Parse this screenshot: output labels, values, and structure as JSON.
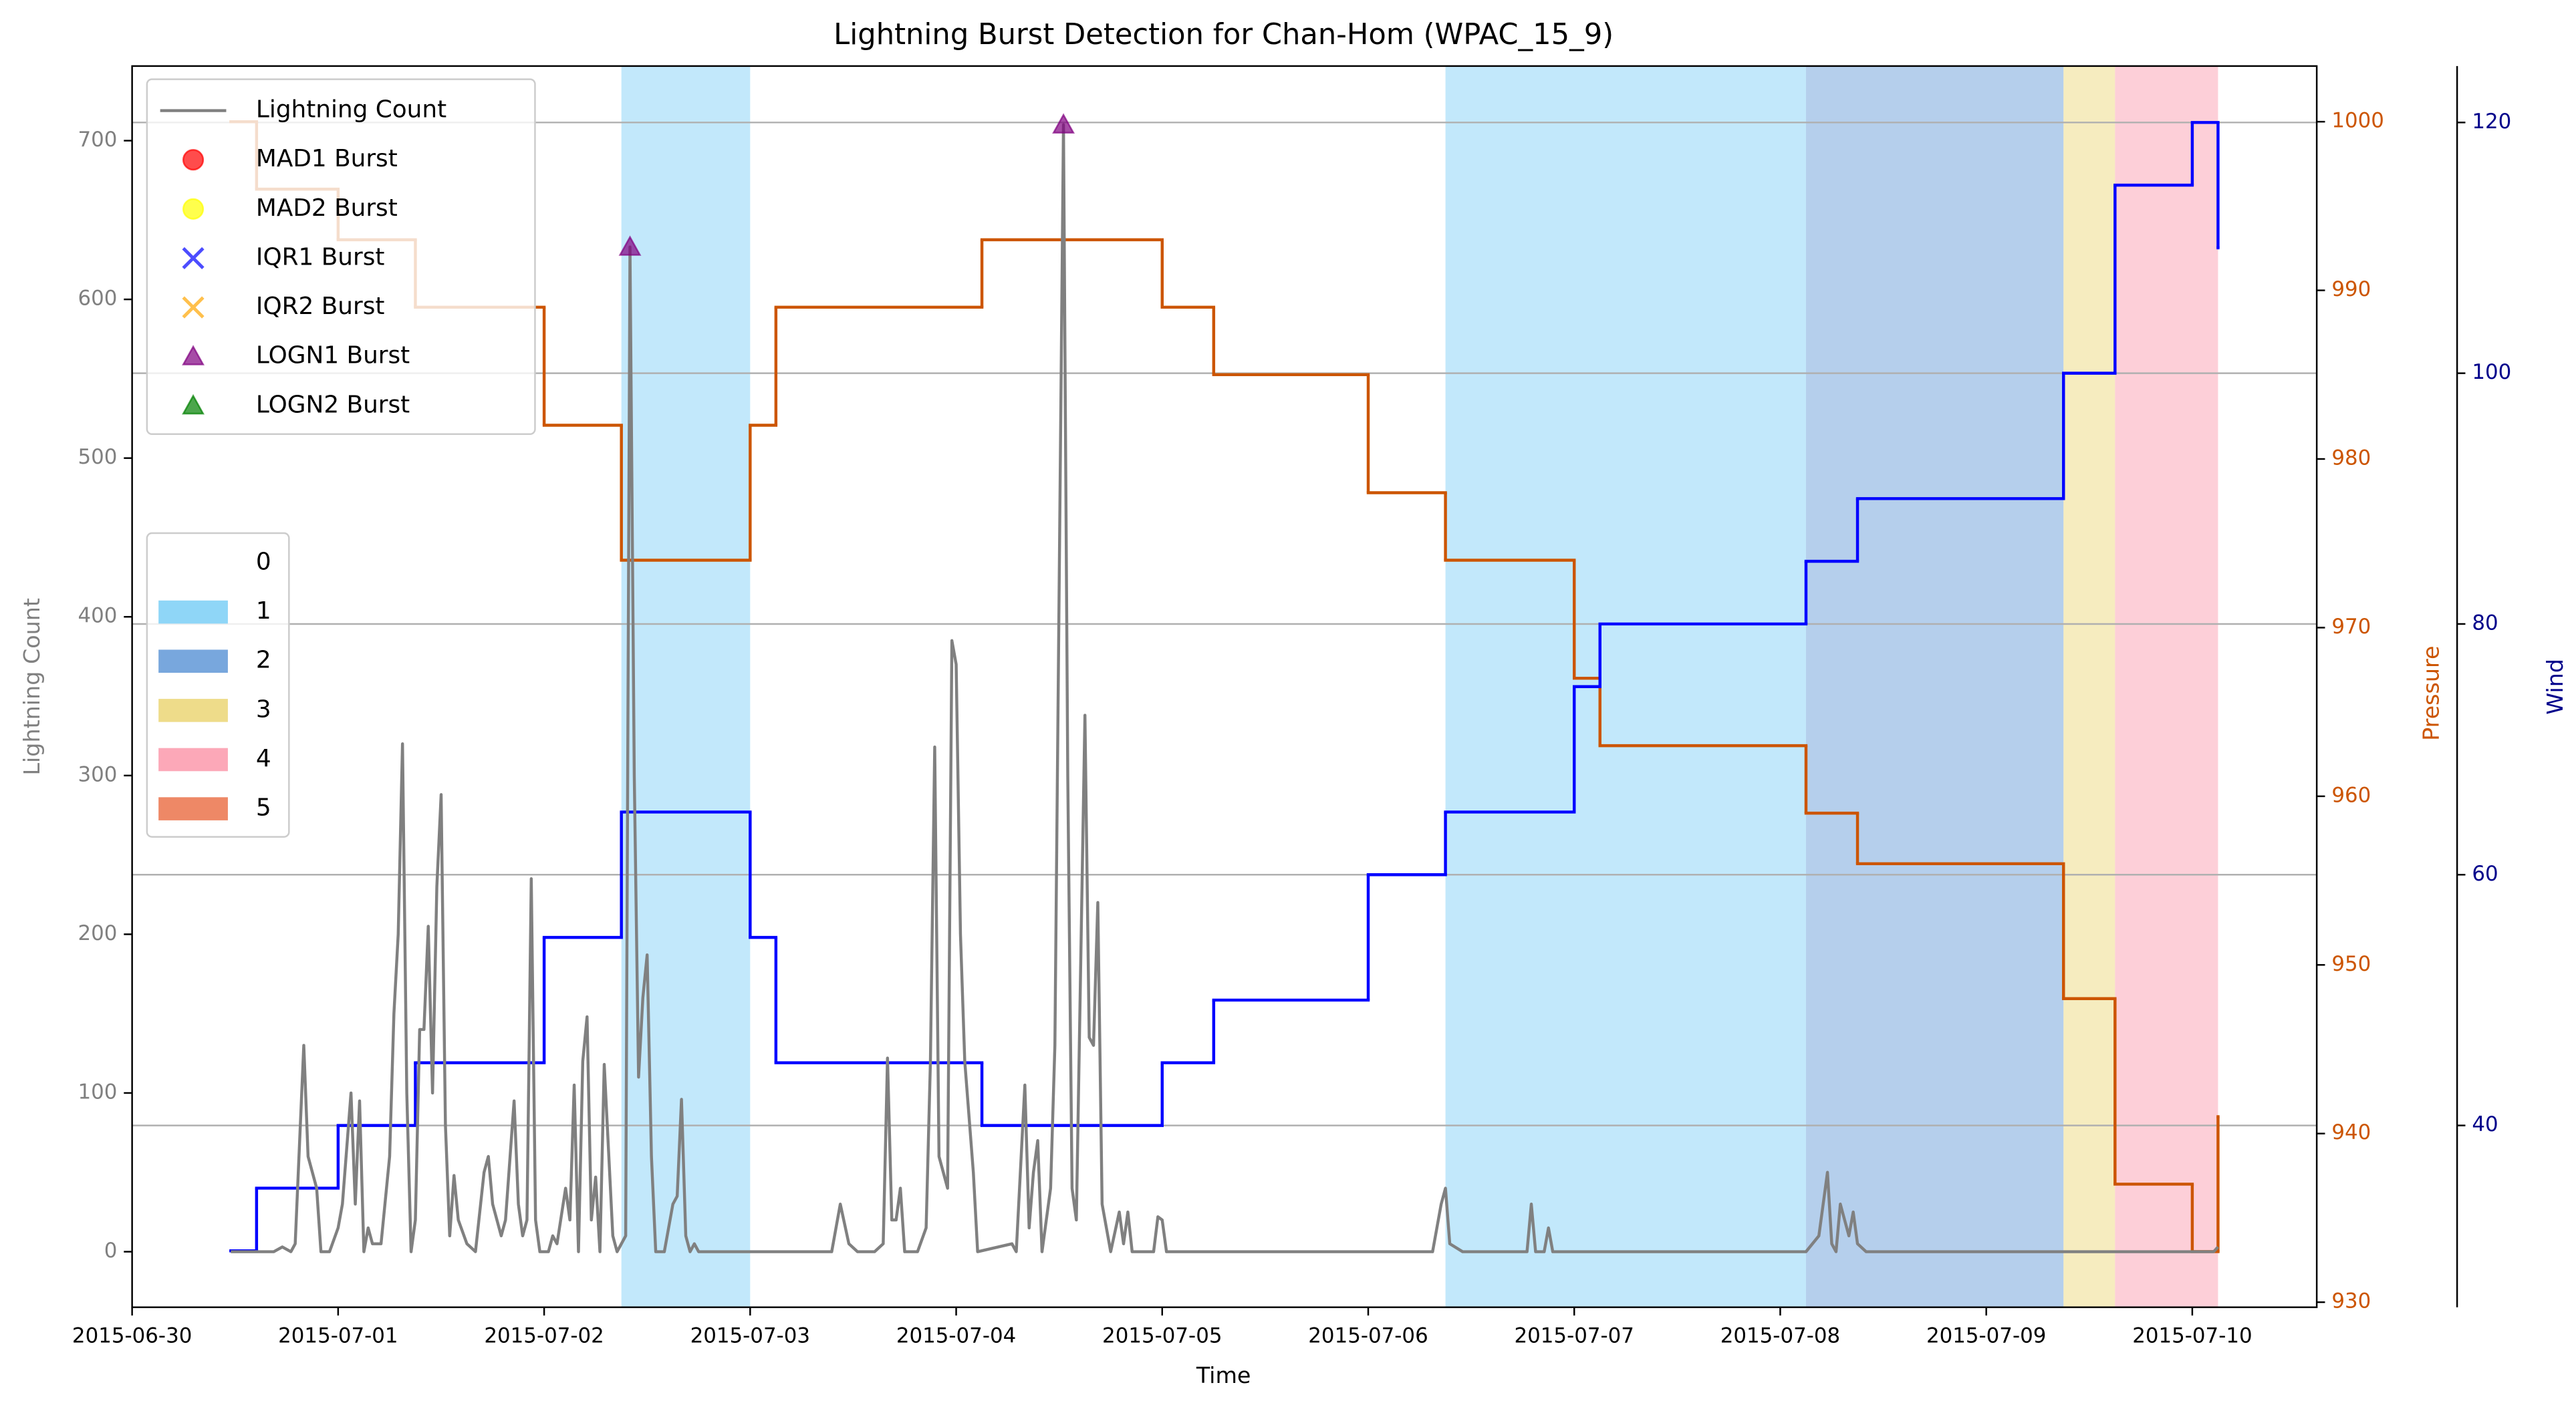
{
  "chart_data": {
    "type": "line",
    "title": "Lightning Burst Detection for Chan-Hom (WPAC_15_9)",
    "xlabel": "Time",
    "ylabel": "Lightning Count",
    "xlim": [
      "2015-06-30T00:00",
      "2015-07-10T14:30"
    ],
    "xticks": [
      "2015-06-30",
      "2015-07-01",
      "2015-07-02",
      "2015-07-03",
      "2015-07-04",
      "2015-07-05",
      "2015-07-06",
      "2015-07-07",
      "2015-07-08",
      "2015-07-09",
      "2015-07-10"
    ],
    "ylim": [
      -35,
      747
    ],
    "yticks": [
      0,
      100,
      200,
      300,
      400,
      500,
      600,
      700
    ],
    "y2lim": [
      929.7,
      1003.3
    ],
    "y2ticks": [
      930,
      940,
      950,
      960,
      970,
      980,
      990,
      1000
    ],
    "y3lim": [
      25.5,
      124.5
    ],
    "y3ticks": [
      40,
      60,
      80,
      100,
      120
    ],
    "grid": "y3",
    "legend": "upper left",
    "series": [
      {
        "name": "Lightning Count",
        "type": "line",
        "marker": "line",
        "color": "#808080",
        "x": [
          "2015-06-30T11:30",
          "2015-06-30T16:30",
          "2015-06-30T17:30",
          "2015-06-30T18:30",
          "2015-06-30T19:00",
          "2015-06-30T20:00",
          "2015-06-30T20:30",
          "2015-06-30T21:30",
          "2015-06-30T22:00",
          "2015-06-30T23:00",
          "2015-07-01T00:00",
          "2015-07-01T00:30",
          "2015-07-01T01:30",
          "2015-07-01T02:00",
          "2015-07-01T02:30",
          "2015-07-01T03:00",
          "2015-07-01T03:30",
          "2015-07-01T04:00",
          "2015-07-01T05:00",
          "2015-07-01T06:00",
          "2015-07-01T06:30",
          "2015-07-01T07:00",
          "2015-07-01T07:30",
          "2015-07-01T08:00",
          "2015-07-01T08:30",
          "2015-07-01T09:00",
          "2015-07-01T09:30",
          "2015-07-01T10:00",
          "2015-07-01T10:30",
          "2015-07-01T11:00",
          "2015-07-01T11:30",
          "2015-07-01T12:00",
          "2015-07-01T12:30",
          "2015-07-01T13:00",
          "2015-07-01T13:30",
          "2015-07-01T14:00",
          "2015-07-01T15:00",
          "2015-07-01T16:00",
          "2015-07-01T17:00",
          "2015-07-01T17:30",
          "2015-07-01T18:00",
          "2015-07-01T19:00",
          "2015-07-01T19:30",
          "2015-07-01T20:30",
          "2015-07-01T21:00",
          "2015-07-01T21:30",
          "2015-07-01T22:00",
          "2015-07-01T22:30",
          "2015-07-01T23:00",
          "2015-07-01T23:30",
          "2015-07-02T00:30",
          "2015-07-02T01:00",
          "2015-07-02T01:30",
          "2015-07-02T02:30",
          "2015-07-02T03:00",
          "2015-07-02T03:30",
          "2015-07-02T04:00",
          "2015-07-02T04:30",
          "2015-07-02T05:00",
          "2015-07-02T05:30",
          "2015-07-02T06:00",
          "2015-07-02T06:30",
          "2015-07-02T07:00",
          "2015-07-02T08:00",
          "2015-07-02T08:30",
          "2015-07-02T09:30",
          "2015-07-02T10:00",
          "2015-07-02T10:30",
          "2015-07-02T11:00",
          "2015-07-02T11:30",
          "2015-07-02T12:00",
          "2015-07-02T12:30",
          "2015-07-02T13:00",
          "2015-07-02T14:00",
          "2015-07-02T15:00",
          "2015-07-02T15:30",
          "2015-07-02T16:00",
          "2015-07-02T16:30",
          "2015-07-02T17:00",
          "2015-07-02T17:30",
          "2015-07-02T18:00",
          "2015-07-03T09:30",
          "2015-07-03T10:30",
          "2015-07-03T11:30",
          "2015-07-03T12:30",
          "2015-07-03T14:30",
          "2015-07-03T15:30",
          "2015-07-03T16:00",
          "2015-07-03T16:30",
          "2015-07-03T17:00",
          "2015-07-03T17:30",
          "2015-07-03T18:00",
          "2015-07-03T19:30",
          "2015-07-03T20:30",
          "2015-07-03T21:00",
          "2015-07-03T21:30",
          "2015-07-03T22:00",
          "2015-07-03T23:00",
          "2015-07-03T23:30",
          "2015-07-04T00:00",
          "2015-07-04T00:30",
          "2015-07-04T01:00",
          "2015-07-04T02:00",
          "2015-07-04T02:30",
          "2015-07-04T06:30",
          "2015-07-04T07:00",
          "2015-07-04T08:00",
          "2015-07-04T08:30",
          "2015-07-04T09:00",
          "2015-07-04T09:30",
          "2015-07-04T10:00",
          "2015-07-04T10:30",
          "2015-07-04T11:00",
          "2015-07-04T11:30",
          "2015-07-04T12:30",
          "2015-07-04T13:00",
          "2015-07-04T13:30",
          "2015-07-04T14:00",
          "2015-07-04T15:00",
          "2015-07-04T15:30",
          "2015-07-04T16:00",
          "2015-07-04T16:30",
          "2015-07-04T17:00",
          "2015-07-04T17:30",
          "2015-07-04T18:00",
          "2015-07-04T19:00",
          "2015-07-04T19:30",
          "2015-07-04T20:00",
          "2015-07-04T20:30",
          "2015-07-04T23:00",
          "2015-07-04T23:30",
          "2015-07-05T00:00",
          "2015-07-05T00:30",
          "2015-07-06T07:30",
          "2015-07-06T08:30",
          "2015-07-06T09:00",
          "2015-07-06T09:30",
          "2015-07-06T11:00",
          "2015-07-06T18:30",
          "2015-07-06T19:00",
          "2015-07-06T19:30",
          "2015-07-06T20:30",
          "2015-07-06T21:00",
          "2015-07-06T21:30",
          "2015-07-08T03:00",
          "2015-07-08T04:30",
          "2015-07-08T05:30",
          "2015-07-08T06:00",
          "2015-07-08T06:30",
          "2015-07-08T07:00",
          "2015-07-08T08:00",
          "2015-07-08T08:30",
          "2015-07-08T09:00",
          "2015-07-08T10:00",
          "2015-07-10T02:30",
          "2015-07-10T03:00"
        ],
        "values": [
          0,
          0,
          3,
          0,
          5,
          130,
          60,
          40,
          0,
          0,
          15,
          30,
          100,
          30,
          95,
          0,
          15,
          5,
          5,
          60,
          150,
          200,
          320,
          100,
          0,
          20,
          140,
          140,
          205,
          100,
          230,
          288,
          80,
          10,
          48,
          20,
          5,
          0,
          50,
          60,
          30,
          10,
          20,
          95,
          30,
          10,
          20,
          235,
          20,
          0,
          0,
          10,
          5,
          40,
          20,
          105,
          0,
          120,
          148,
          20,
          47,
          0,
          118,
          10,
          0,
          10,
          633,
          300,
          110,
          160,
          187,
          60,
          0,
          0,
          30,
          35,
          96,
          10,
          0,
          5,
          0,
          0,
          30,
          5,
          0,
          0,
          5,
          122,
          20,
          20,
          40,
          0,
          0,
          15,
          120,
          318,
          60,
          40,
          385,
          370,
          200,
          120,
          50,
          0,
          5,
          0,
          105,
          15,
          50,
          70,
          0,
          20,
          40,
          130,
          710,
          300,
          40,
          20,
          338,
          135,
          130,
          220,
          30,
          15,
          0,
          25,
          5,
          25,
          0,
          0,
          22,
          20,
          0,
          0,
          30,
          40,
          5,
          0,
          0,
          30,
          0,
          0,
          15,
          0,
          0,
          10,
          50,
          5,
          0,
          30,
          10,
          25,
          5,
          0,
          0,
          3
        ]
      },
      {
        "name": "MAD1 Burst",
        "type": "scatter",
        "marker": "o",
        "color": "#ff0000",
        "x": [],
        "values": []
      },
      {
        "name": "MAD2 Burst",
        "type": "scatter",
        "marker": "o",
        "color": "#ffff00",
        "x": [],
        "values": []
      },
      {
        "name": "IQR1 Burst",
        "type": "scatter",
        "marker": "x",
        "color": "#0000ff",
        "x": [],
        "values": []
      },
      {
        "name": "IQR2 Burst",
        "type": "scatter",
        "marker": "x",
        "color": "#ffa500",
        "x": [],
        "values": []
      },
      {
        "name": "LOGN1 Burst",
        "type": "scatter",
        "marker": "^",
        "color": "#800080",
        "x": [
          "2015-07-02T10:00",
          "2015-07-04T12:30"
        ],
        "values": [
          633,
          710
        ]
      },
      {
        "name": "LOGN2 Burst",
        "type": "scatter",
        "marker": "^",
        "color": "#008000",
        "x": [],
        "values": []
      }
    ],
    "pressure": {
      "label": "Pressure",
      "axis": "y2",
      "step": "post",
      "color": "#cc5500",
      "x": [
        "2015-06-30T11:30",
        "2015-06-30T14:30",
        "2015-07-01T00:00",
        "2015-07-01T09:00",
        "2015-07-02T00:00",
        "2015-07-02T09:00",
        "2015-07-03T00:00",
        "2015-07-03T03:00",
        "2015-07-04T03:00",
        "2015-07-05T00:00",
        "2015-07-05T06:00",
        "2015-07-06T00:00",
        "2015-07-06T09:00",
        "2015-07-07T00:00",
        "2015-07-07T03:00",
        "2015-07-08T03:00",
        "2015-07-08T09:00",
        "2015-07-09T09:00",
        "2015-07-09T15:00",
        "2015-07-10T00:00",
        "2015-07-10T03:00"
      ],
      "values": [
        1000,
        996,
        993,
        989,
        982,
        974,
        982,
        989,
        993,
        989,
        985,
        978,
        974,
        967,
        963,
        959,
        956,
        948,
        937,
        933,
        941
      ]
    },
    "wind": {
      "label": "Wind",
      "axis": "y3",
      "step": "post",
      "color": "#0000ff",
      "tick_color": "#00008b",
      "x": [
        "2015-06-30T11:30",
        "2015-06-30T14:30",
        "2015-07-01T00:00",
        "2015-07-01T09:00",
        "2015-07-02T00:00",
        "2015-07-02T09:00",
        "2015-07-03T00:00",
        "2015-07-03T03:00",
        "2015-07-04T03:00",
        "2015-07-05T00:00",
        "2015-07-05T06:00",
        "2015-07-06T00:00",
        "2015-07-06T09:00",
        "2015-07-07T00:00",
        "2015-07-07T03:00",
        "2015-07-08T03:00",
        "2015-07-08T09:00",
        "2015-07-09T09:00",
        "2015-07-09T15:00",
        "2015-07-10T00:00",
        "2015-07-10T03:00"
      ],
      "values": [
        30,
        35,
        40,
        45,
        55,
        65,
        55,
        45,
        40,
        45,
        50,
        60,
        65,
        75,
        80,
        85,
        90,
        100,
        115,
        120,
        110
      ]
    },
    "intensity": {
      "categories": [
        "0",
        "1",
        "2",
        "3",
        "4",
        "5"
      ],
      "colors": [
        "none",
        "#8fd6f7",
        "#78a7dd",
        "#eedc8a",
        "#fca8b8",
        "#ee8866"
      ],
      "spans": [
        {
          "start": "2015-07-02T09:00",
          "end": "2015-07-03T00:00",
          "level": 1
        },
        {
          "start": "2015-07-06T09:00",
          "end": "2015-07-08T03:00",
          "level": 1
        },
        {
          "start": "2015-07-08T03:00",
          "end": "2015-07-09T09:00",
          "level": 2
        },
        {
          "start": "2015-07-09T09:00",
          "end": "2015-07-09T15:00",
          "level": 3
        },
        {
          "start": "2015-07-09T15:00",
          "end": "2015-07-10T03:00",
          "level": 4
        }
      ]
    }
  }
}
